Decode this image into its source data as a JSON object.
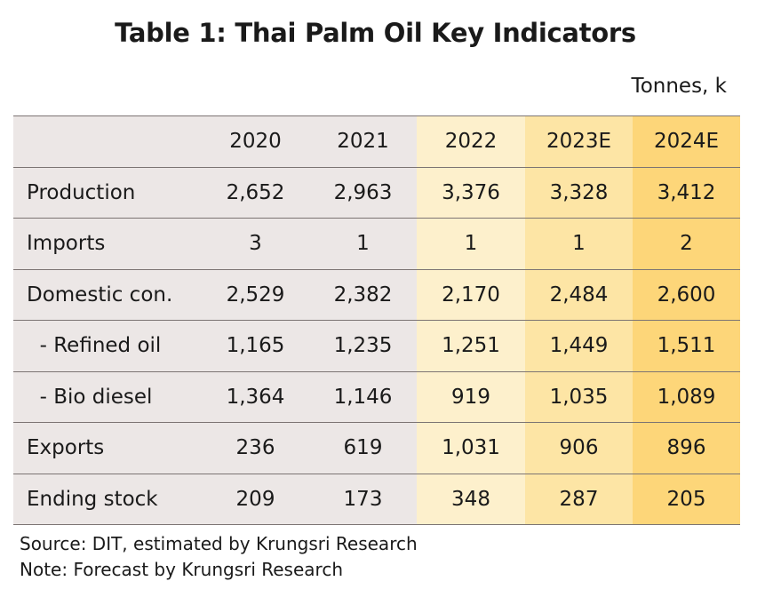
{
  "title": "Table 1: Thai Palm Oil Key Indicators",
  "unit": "Tonnes, k",
  "columns": [
    "",
    "2020",
    "2021",
    "2022",
    "2023E",
    "2024E"
  ],
  "rows": [
    {
      "label": "Production",
      "values": [
        "2,652",
        "2,963",
        "3,376",
        "3,328",
        "3,412"
      ]
    },
    {
      "label": "Imports",
      "values": [
        "3",
        "1",
        "1",
        "1",
        "2"
      ]
    },
    {
      "label": "Domestic con.",
      "values": [
        "2,529",
        "2,382",
        "2,170",
        "2,484",
        "2,600"
      ]
    },
    {
      "label": "  - Refined oil",
      "values": [
        "1,165",
        "1,235",
        "1,251",
        "1,449",
        "1,511"
      ]
    },
    {
      "label": "  - Bio diesel",
      "values": [
        "1,364",
        "1,146",
        "919",
        "1,035",
        "1,089"
      ]
    },
    {
      "label": "Exports",
      "values": [
        "236",
        "619",
        "1,031",
        "906",
        "896"
      ]
    },
    {
      "label": "Ending stock",
      "values": [
        "209",
        "173",
        "348",
        "287",
        "205"
      ]
    }
  ],
  "footnotes": {
    "source": "Source: DIT, estimated by Krungsri Research",
    "note": "Note: Forecast by Krungsri Research"
  },
  "colors": {
    "historical_bg": "#ece7e6",
    "y2022_bg": "#fdf0cc",
    "y2023e_bg": "#fde5a5",
    "y2024e_bg": "#fdd679"
  }
}
